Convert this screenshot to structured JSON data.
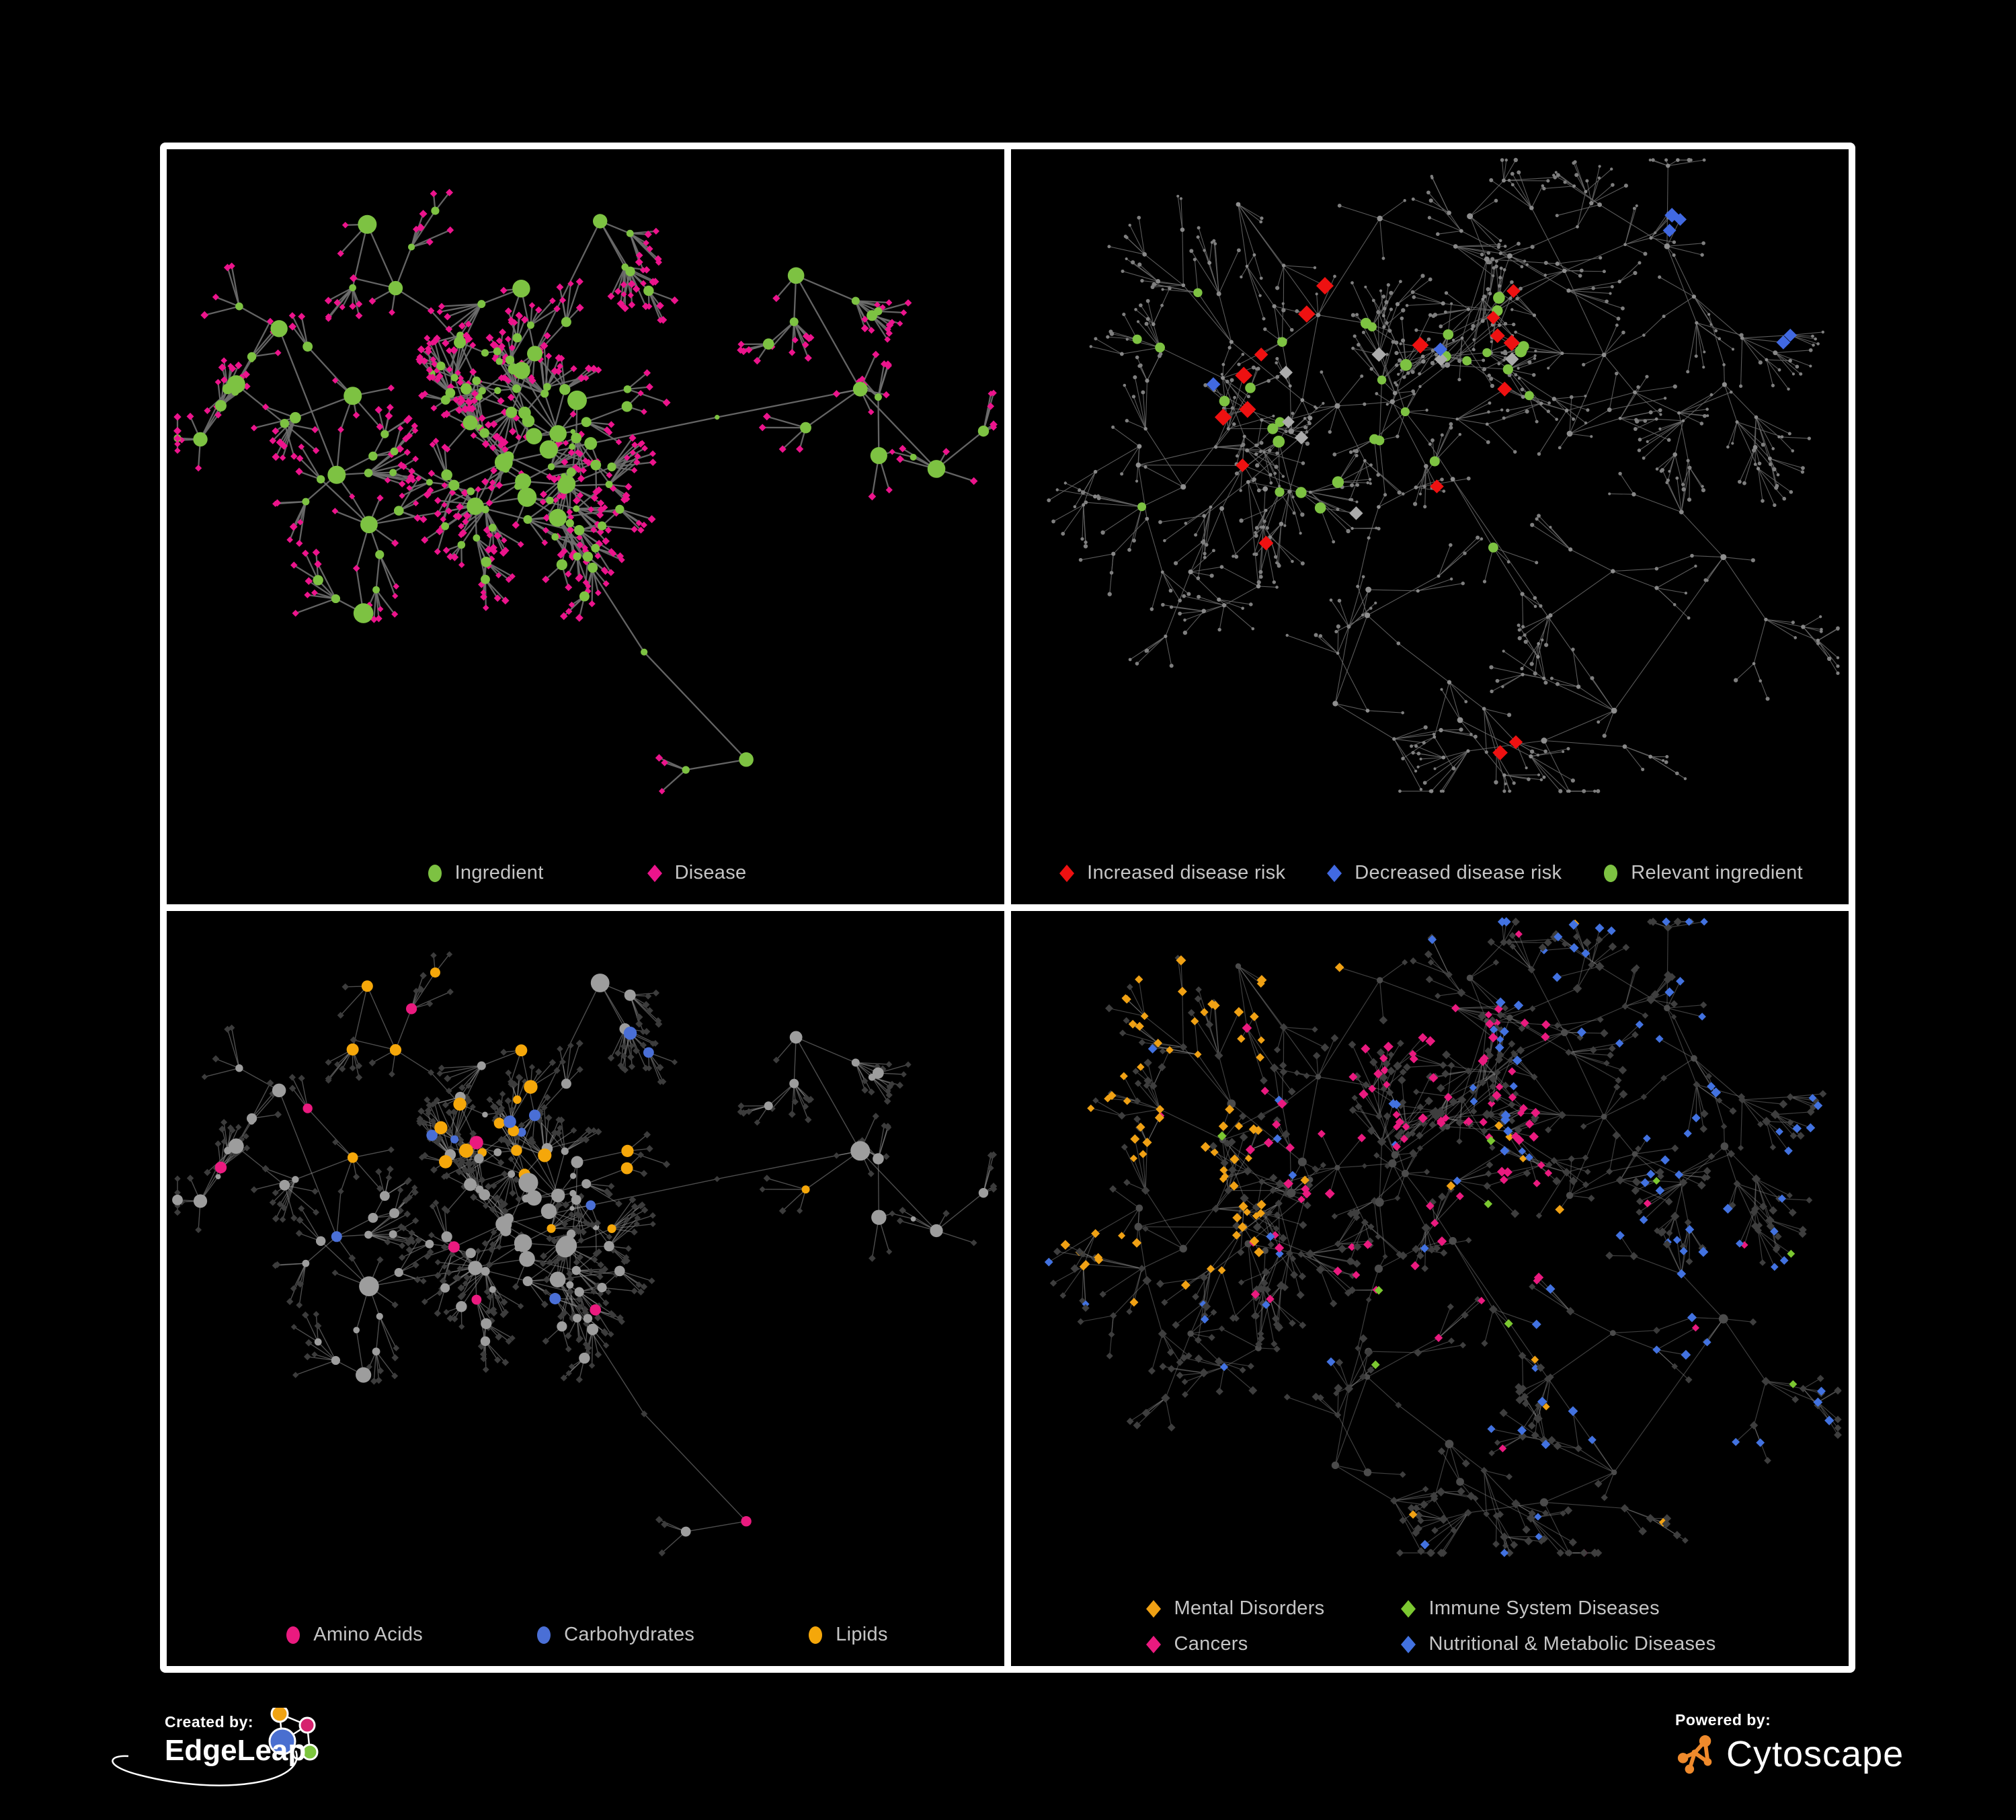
{
  "page": {
    "background": "#000000",
    "frame": "#ffffff"
  },
  "footer": {
    "created_by": {
      "label": "Created by:",
      "brand": "EdgeLeap"
    },
    "powered_by": {
      "label": "Powered by:",
      "brand": "Cytoscape"
    },
    "edgeleap_logo_colors": {
      "orange": "#f0a313",
      "magenta": "#d6226e",
      "blue": "#4a6fd0",
      "green": "#7cc53e"
    },
    "cytoscape_icon_color": "#ef8a2c"
  },
  "panels": [
    {
      "id": "ingredient-disease-network",
      "legend": [
        {
          "shape": "circle",
          "color": "#7dc242",
          "label": "Ingredient"
        },
        {
          "shape": "diamond",
          "color": "#ec148c",
          "label": "Disease"
        }
      ],
      "network": {
        "seed": 20177,
        "styleSeed": 901,
        "clusters": 34,
        "coreRatio": 0.5,
        "coreX": 0.42,
        "coreY": 0.44,
        "coreSpreadX": 0.2,
        "coreSpreadY": 0.17,
        "subMax": 3,
        "subRMin": 45,
        "subRVar": 55,
        "leafMin": 3,
        "leafVar": 8,
        "leafRMin": 26,
        "leafRVar": 40,
        "recurseP": 0.1,
        "hubLeafMax": 5,
        "midJitter": 30,
        "edge": {
          "color": "#6f6f6f",
          "width": 2.3,
          "opacity": 0.9
        },
        "roles": {
          "hub": {
            "shape": "circle",
            "color": "#7dc242",
            "rMin": 9,
            "rMax": 15
          },
          "sub": {
            "shape": "circle",
            "color": "#7dc242",
            "rMin": 5,
            "rMax": 8.5
          },
          "mid": {
            "variants": [
              {
                "p": 0.5,
                "shape": "circle",
                "color": "#7dc242",
                "rMin": 3.5,
                "rMax": 6
              },
              {
                "p": 0.5,
                "shape": "diamond",
                "color": "#ec148c",
                "rMin": 4.5,
                "rMax": 5.5
              }
            ]
          },
          "leaf": {
            "shape": "diamond",
            "color": "#ec148c",
            "rMin": 4.5,
            "rMax": 6
          }
        },
        "highlights": []
      }
    },
    {
      "id": "disease-risk-network",
      "legend": [
        {
          "shape": "diamond",
          "color": "#ee1111",
          "label": "Increased disease risk"
        },
        {
          "shape": "diamond",
          "color": "#4169e1",
          "label": "Decreased disease risk"
        },
        {
          "shape": "circle",
          "color": "#7dc242",
          "label": "Relevant ingredient"
        }
      ],
      "network": {
        "seed": 7731,
        "styleSeed": 412,
        "clusters": 44,
        "coreRatio": 0.32,
        "coreX": 0.4,
        "coreY": 0.4,
        "coreSpreadX": 0.22,
        "coreSpreadY": 0.2,
        "subMax": 3,
        "subRMin": 55,
        "subRVar": 70,
        "leafMin": 2,
        "leafVar": 6,
        "leafRMin": 30,
        "leafRVar": 55,
        "recurseP": 0.22,
        "hubLeafMax": 4,
        "midJitter": 34,
        "edge": {
          "color": "#6a6a6a",
          "width": 1.1,
          "opacity": 0.85
        },
        "roles": {
          "hub": {
            "shape": "circle",
            "color": "#8e8e8e",
            "rMin": 2.8,
            "rMax": 4.5
          },
          "sub": {
            "shape": "circle",
            "color": "#888888",
            "rMin": 2.2,
            "rMax": 3.5
          },
          "mid": {
            "shape": "circle",
            "color": "#838383",
            "rMin": 2,
            "rMax": 3
          },
          "leaf": {
            "shape": "circle",
            "color": "#7f7f7f",
            "rMin": 2,
            "rMax": 3.2
          }
        },
        "highlights": [
          {
            "roles": [
              "hub",
              "sub"
            ],
            "region": [
              0.12,
              0.18,
              0.62,
              0.62
            ],
            "p": 0.32,
            "shape": "circle",
            "color": "#7dc242",
            "rMin": 6.5,
            "rMax": 9
          },
          {
            "roles": [
              "sub",
              "leaf",
              "mid"
            ],
            "region": [
              0.18,
              0.2,
              0.68,
              0.62
            ],
            "p": 0.06,
            "shape": "diamond",
            "color": "#ee1111",
            "rMin": 10,
            "rMax": 13
          },
          {
            "roles": [
              "sub",
              "leaf"
            ],
            "region": [
              0.2,
              0.25,
              0.6,
              0.6
            ],
            "p": 0.02,
            "shape": "diamond",
            "color": "#ababab",
            "rMin": 9,
            "rMax": 11
          },
          {
            "roles": [
              "sub",
              "leaf"
            ],
            "region": [
              0.14,
              0.28,
              0.52,
              0.56
            ],
            "p": 0.022,
            "shape": "diamond",
            "color": "#4169e1",
            "rMin": 9,
            "rMax": 11.5
          },
          {
            "roles": [
              "sub",
              "leaf"
            ],
            "region": [
              0.78,
              0.1,
              0.99,
              0.3
            ],
            "p": 0.2,
            "shape": "diamond",
            "color": "#4169e1",
            "rMin": 9,
            "rMax": 11
          },
          {
            "roles": [
              "sub",
              "leaf"
            ],
            "region": [
              0.42,
              0.72,
              0.78,
              0.95
            ],
            "p": 0.05,
            "shape": "diamond",
            "color": "#ee1111",
            "rMin": 9.5,
            "rMax": 12
          }
        ]
      }
    },
    {
      "id": "ingredient-classes-network",
      "legend": [
        {
          "shape": "circle",
          "color": "#ea1a7f",
          "label": "Amino Acids"
        },
        {
          "shape": "circle",
          "color": "#4a6fd6",
          "label": "Carbohydrates"
        },
        {
          "shape": "circle",
          "color": "#f5a70a",
          "label": "Lipids"
        }
      ],
      "network": {
        "seed": 20177,
        "styleSeed": 555,
        "clusters": 34,
        "coreRatio": 0.5,
        "coreX": 0.42,
        "coreY": 0.44,
        "coreSpreadX": 0.2,
        "coreSpreadY": 0.17,
        "subMax": 3,
        "subRMin": 45,
        "subRVar": 55,
        "leafMin": 3,
        "leafVar": 8,
        "leafRMin": 26,
        "leafRVar": 40,
        "recurseP": 0.1,
        "hubLeafMax": 5,
        "midJitter": 30,
        "edge": {
          "color": "#9a9a9a",
          "width": 1.4,
          "opacity": 0.5
        },
        "roles": {
          "hub": {
            "shape": "circle",
            "color": "#9d9d9d",
            "rMin": 9,
            "rMax": 15
          },
          "sub": {
            "shape": "circle",
            "color": "#9d9d9d",
            "rMin": 5,
            "rMax": 8.5
          },
          "mid": {
            "variants": [
              {
                "p": 0.5,
                "shape": "circle",
                "color": "#9d9d9d",
                "rMin": 3.5,
                "rMax": 6
              },
              {
                "p": 0.5,
                "shape": "diamond",
                "color": "#3c3c3c",
                "rMin": 4.5,
                "rMax": 5.5
              }
            ]
          },
          "leaf": {
            "shape": "diamond",
            "color": "#3c3c3c",
            "rMin": 4.5,
            "rMax": 5.5
          }
        },
        "highlights": [
          {
            "roles": [
              "hub",
              "sub"
            ],
            "region": [
              0.22,
              0.06,
              0.6,
              0.4
            ],
            "p": 0.16,
            "shape": "circle",
            "color": "#4a6fd6",
            "rMin": 6,
            "rMax": 10
          },
          {
            "roles": [
              "hub",
              "sub"
            ],
            "region": [
              0.22,
              0.06,
              0.6,
              0.4
            ],
            "p": 0.62,
            "shape": "circle",
            "color": "#f5a70a",
            "rMin": 6,
            "rMax": 10.5
          },
          {
            "roles": [
              "hub",
              "sub"
            ],
            "region": [
              0,
              0,
              1,
              1
            ],
            "p": 0.07,
            "shape": "circle",
            "color": "#ea1a7f",
            "rMin": 6.5,
            "rMax": 10.5
          },
          {
            "roles": [
              "hub",
              "sub"
            ],
            "region": [
              0,
              0,
              1,
              1
            ],
            "p": 0.06,
            "shape": "circle",
            "color": "#f5a70a",
            "rMin": 6,
            "rMax": 10
          },
          {
            "roles": [
              "hub",
              "sub"
            ],
            "region": [
              0,
              0,
              1,
              1
            ],
            "p": 0.03,
            "shape": "circle",
            "color": "#4a6fd6",
            "rMin": 6,
            "rMax": 9
          }
        ]
      }
    },
    {
      "id": "disease-classes-network",
      "legend": [
        {
          "shape": "diamond",
          "color": "#f0a114",
          "label": "Mental Disorders"
        },
        {
          "shape": "diamond",
          "color": "#7cc831",
          "label": "Immune System Diseases"
        },
        {
          "shape": "diamond",
          "color": "#ea1a7f",
          "label": "Cancers"
        },
        {
          "shape": "diamond",
          "color": "#4272e0",
          "label": "Nutritional & Metabolic Diseases"
        }
      ],
      "network": {
        "seed": 7731,
        "styleSeed": 77,
        "clusters": 44,
        "coreRatio": 0.32,
        "coreX": 0.4,
        "coreY": 0.4,
        "coreSpreadX": 0.22,
        "coreSpreadY": 0.2,
        "subMax": 3,
        "subRMin": 55,
        "subRVar": 70,
        "leafMin": 2,
        "leafVar": 6,
        "leafRMin": 30,
        "leafRVar": 55,
        "recurseP": 0.22,
        "hubLeafMax": 4,
        "midJitter": 34,
        "edge": {
          "color": "#8a8a8a",
          "width": 1.2,
          "opacity": 0.45
        },
        "roles": {
          "hub": {
            "shape": "circle",
            "color": "#4b4b4b",
            "rMin": 4,
            "rMax": 7
          },
          "sub": {
            "shape": "diamond",
            "color": "#3e3e3e",
            "rMin": 5,
            "rMax": 7
          },
          "mid": {
            "shape": "diamond",
            "color": "#393939",
            "rMin": 4,
            "rMax": 5.5
          },
          "leaf": {
            "shape": "diamond",
            "color": "#3e3e3e",
            "rMin": 4.5,
            "rMax": 6.5
          }
        },
        "highlights": [
          {
            "roles": [
              "sub",
              "leaf",
              "mid"
            ],
            "region": [
              0.0,
              0.05,
              0.3,
              0.58
            ],
            "p": 0.5,
            "shape": "diamond",
            "color": "#f0a114",
            "rMin": 5.5,
            "rMax": 7.5
          },
          {
            "roles": [
              "sub",
              "leaf",
              "mid"
            ],
            "region": [
              0.28,
              0.12,
              0.66,
              0.6
            ],
            "p": 0.26,
            "shape": "diamond",
            "color": "#ea1a7f",
            "rMin": 5.5,
            "rMax": 7.5
          },
          {
            "roles": [
              "sub",
              "leaf",
              "mid"
            ],
            "region": [
              0.58,
              0.0,
              1,
              0.9
            ],
            "p": 0.2,
            "shape": "diamond",
            "color": "#4272e0",
            "rMin": 5.5,
            "rMax": 7.5
          },
          {
            "roles": [
              "sub",
              "leaf",
              "mid"
            ],
            "region": [
              0,
              0,
              1,
              1
            ],
            "p": 0.05,
            "shape": "diamond",
            "color": "#4272e0",
            "rMin": 5.5,
            "rMax": 7
          },
          {
            "roles": [
              "sub",
              "leaf",
              "mid"
            ],
            "region": [
              0,
              0,
              1,
              1
            ],
            "p": 0.03,
            "shape": "diamond",
            "color": "#ea1a7f",
            "rMin": 5.5,
            "rMax": 7
          },
          {
            "roles": [
              "sub",
              "leaf",
              "mid"
            ],
            "region": [
              0,
              0,
              1,
              1
            ],
            "p": 0.02,
            "shape": "diamond",
            "color": "#f0a114",
            "rMin": 5.5,
            "rMax": 7
          },
          {
            "roles": [
              "sub",
              "leaf",
              "mid"
            ],
            "region": [
              0,
              0,
              1,
              1
            ],
            "p": 0.015,
            "shape": "diamond",
            "color": "#7cc831",
            "rMin": 5.5,
            "rMax": 7
          }
        ]
      }
    }
  ]
}
